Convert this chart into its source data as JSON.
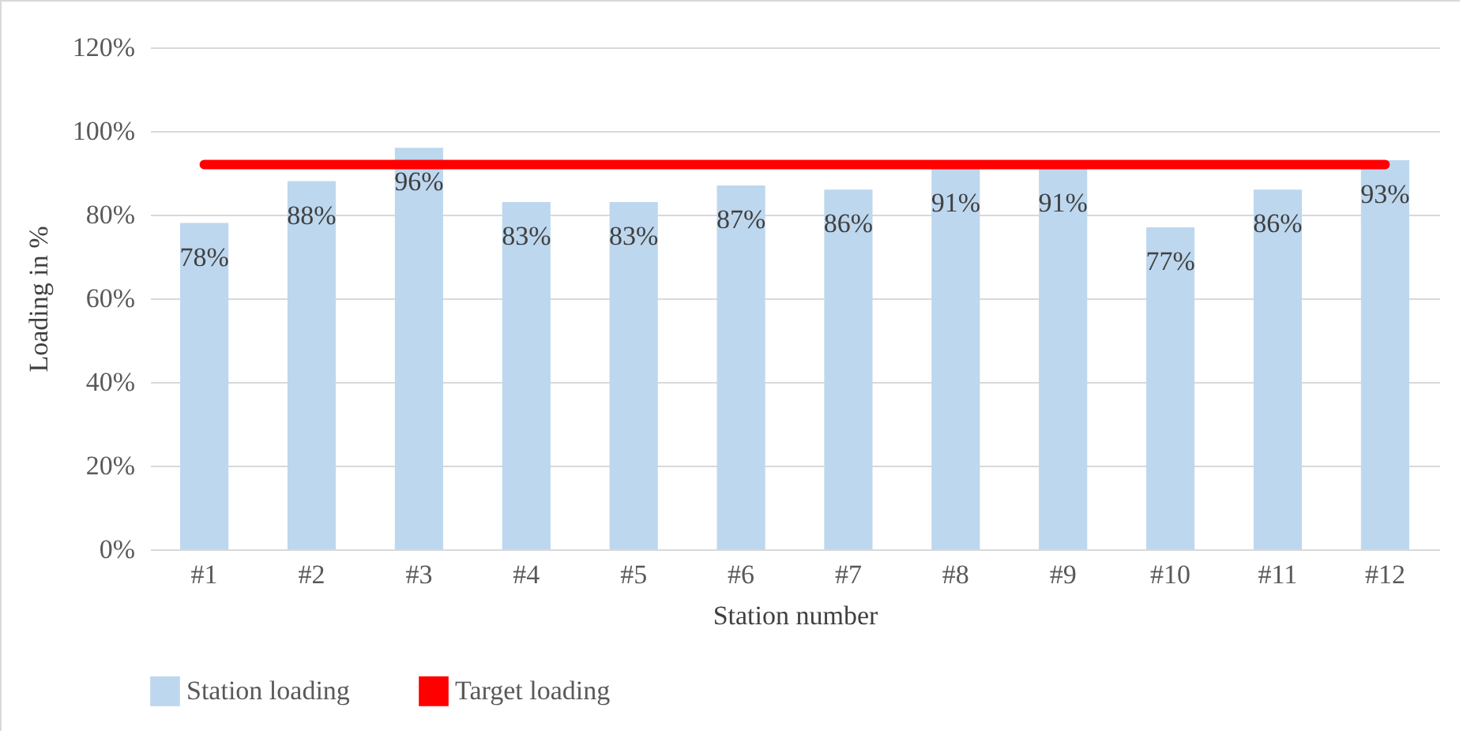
{
  "chart_data": {
    "type": "bar",
    "xlabel": "Station number",
    "ylabel": "Loading in %",
    "categories": [
      "#1",
      "#2",
      "#3",
      "#4",
      "#5",
      "#6",
      "#7",
      "#8",
      "#9",
      "#10",
      "#11",
      "#12"
    ],
    "series": [
      {
        "name": "Station loading",
        "color": "#bdd7ee",
        "values": [
          78,
          88,
          96,
          83,
          83,
          87,
          86,
          91,
          91,
          77,
          86,
          93
        ],
        "value_labels": [
          "78%",
          "88%",
          "96%",
          "83%",
          "83%",
          "87%",
          "86%",
          "91%",
          "91%",
          "77%",
          "86%",
          "93%"
        ]
      },
      {
        "name": "Target loading",
        "type": "line",
        "color": "#ff0000",
        "values": [
          92,
          92,
          92,
          92,
          92,
          92,
          92,
          92,
          92,
          92,
          92,
          92
        ]
      }
    ],
    "ylim": [
      0,
      120
    ],
    "yticks": [
      {
        "value": 0,
        "label": "0%"
      },
      {
        "value": 20,
        "label": "20%"
      },
      {
        "value": 40,
        "label": "40%"
      },
      {
        "value": 60,
        "label": "60%"
      },
      {
        "value": 80,
        "label": "80%"
      },
      {
        "value": 100,
        "label": "100%"
      },
      {
        "value": 120,
        "label": "120%"
      }
    ],
    "grid": "y",
    "legend": "bottom"
  }
}
